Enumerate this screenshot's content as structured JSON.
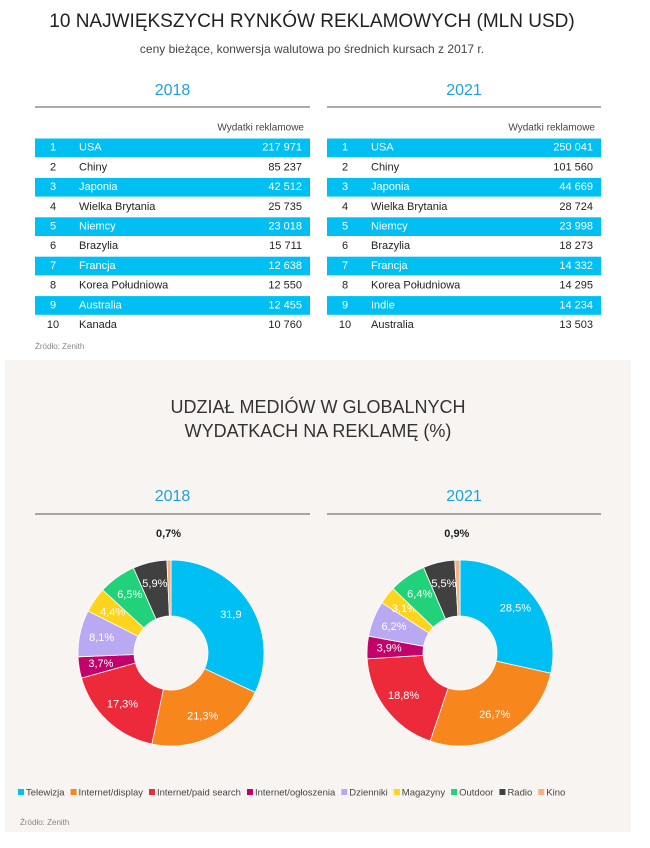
{
  "title": "10 NAJWIĘKSZYCH RYNKÓW REKLAMOWYCH (MLN USD)",
  "subtitle": "ceny bieżące, konwersja walutowa po średnich kursach z 2017 r.",
  "tables": [
    {
      "year": "2018",
      "column_header": "Wydatki reklamowe",
      "rows": [
        [
          1,
          "USA",
          "217 971"
        ],
        [
          2,
          "Chiny",
          "85 237"
        ],
        [
          3,
          "Japonia",
          "42 512"
        ],
        [
          4,
          "Wielka Brytania",
          "25 735"
        ],
        [
          5,
          "Niemcy",
          "23 018"
        ],
        [
          6,
          "Brazylia",
          "15 711"
        ],
        [
          7,
          "Francja",
          "12 638"
        ],
        [
          8,
          "Korea Południowa",
          "12 550"
        ],
        [
          9,
          "Australia",
          "12 455"
        ],
        [
          10,
          "Kanada",
          "10 760"
        ]
      ]
    },
    {
      "year": "2021",
      "column_header": "Wydatki reklamowe",
      "rows": [
        [
          1,
          "USA",
          "250 041"
        ],
        [
          2,
          "Chiny",
          "101 560"
        ],
        [
          3,
          "Japonia",
          "44 669"
        ],
        [
          4,
          "Wielka Brytania",
          "28 724"
        ],
        [
          5,
          "Niemcy",
          "23 998"
        ],
        [
          6,
          "Brazylia",
          "18 273"
        ],
        [
          7,
          "Francja",
          "14 332"
        ],
        [
          8,
          "Korea Południowa",
          "14 295"
        ],
        [
          9,
          "Indie",
          "14 234"
        ],
        [
          10,
          "Australia",
          "13 503"
        ]
      ]
    }
  ],
  "source_top": "Źródło: Zenith",
  "media_title": [
    "UDZIAŁ MEDIÓW W GLOBALNYCH",
    "WYDATKACH NA REKLAMĘ (%)"
  ],
  "legend": {
    "categories": [
      "Telewizja",
      "Internet/display",
      "Internet/paid search",
      "Internet/ogłoszenia",
      "Dzienniki",
      "Magazyny",
      "Outdoor",
      "Radio",
      "Kino"
    ],
    "colors": [
      "#00bff3",
      "#f7861d",
      "#ed2a3a",
      "#c4006b",
      "#b9a9f2",
      "#ffd41e",
      "#22d27a",
      "#404040",
      "#f4b183"
    ]
  },
  "chart_data": [
    {
      "type": "donut",
      "title": "2018",
      "values": [
        31.9,
        21.3,
        17.3,
        3.7,
        8.1,
        4.4,
        6.5,
        5.9,
        0.7
      ],
      "value_labels": [
        "31,9",
        "21,3%",
        "17,3%",
        "3,7%",
        "8,1%",
        "4,4%",
        "6,5%",
        "5,9%",
        "0,7%"
      ]
    },
    {
      "type": "donut",
      "title": "2021",
      "values": [
        28.5,
        26.7,
        18.8,
        3.9,
        6.2,
        3.1,
        6.4,
        5.5,
        0.9
      ],
      "value_labels": [
        "28,5%",
        "26,7%",
        "18,8%",
        "3,9%",
        "6,2%",
        "3,1%",
        "6,4%",
        "5,5%",
        "0,9%"
      ]
    }
  ],
  "source_bottom": "Źródło: Zenith"
}
